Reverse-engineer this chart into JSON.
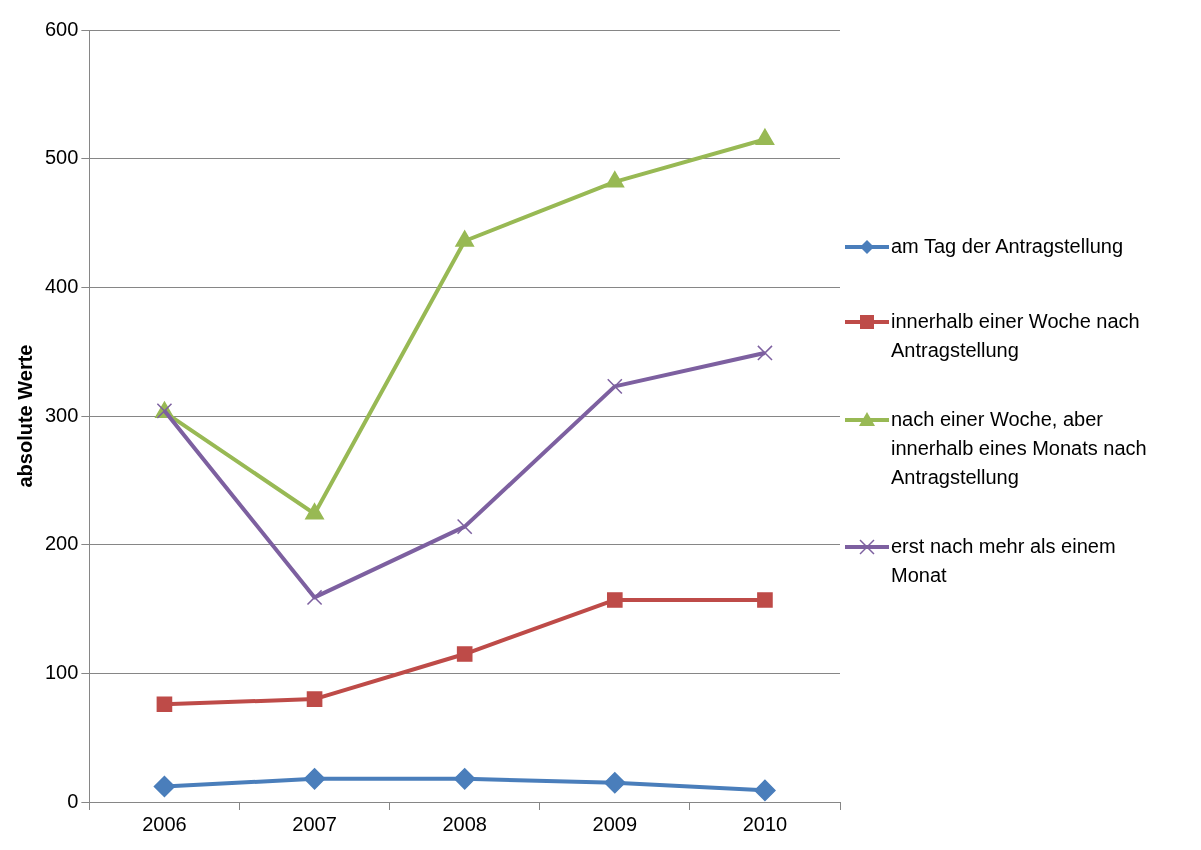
{
  "chart_data": {
    "type": "line",
    "ylabel": "absolute Werte",
    "categories": [
      "2006",
      "2007",
      "2008",
      "2009",
      "2010"
    ],
    "series": [
      {
        "name": "am Tag der Antragstellung",
        "color": "#4a7ebb",
        "marker": "diamond",
        "values": [
          12,
          18,
          18,
          15,
          9
        ]
      },
      {
        "name": "innerhalb einer Woche nach Antragstellung",
        "color": "#be4b48",
        "marker": "square",
        "values": [
          76,
          80,
          115,
          157,
          157
        ]
      },
      {
        "name": "nach einer Woche, aber innerhalb eines Monats nach Antragstellung",
        "color": "#98b954",
        "marker": "triangle",
        "values": [
          303,
          224,
          436,
          482,
          515
        ]
      },
      {
        "name": "erst nach mehr als einem Monat",
        "color": "#7d60a0",
        "marker": "cross",
        "values": [
          304,
          159,
          214,
          323,
          349
        ]
      }
    ],
    "ylim": [
      0,
      600
    ],
    "yticks": [
      0,
      100,
      200,
      300,
      400,
      500,
      600
    ],
    "grid": "y",
    "legend": "right"
  }
}
